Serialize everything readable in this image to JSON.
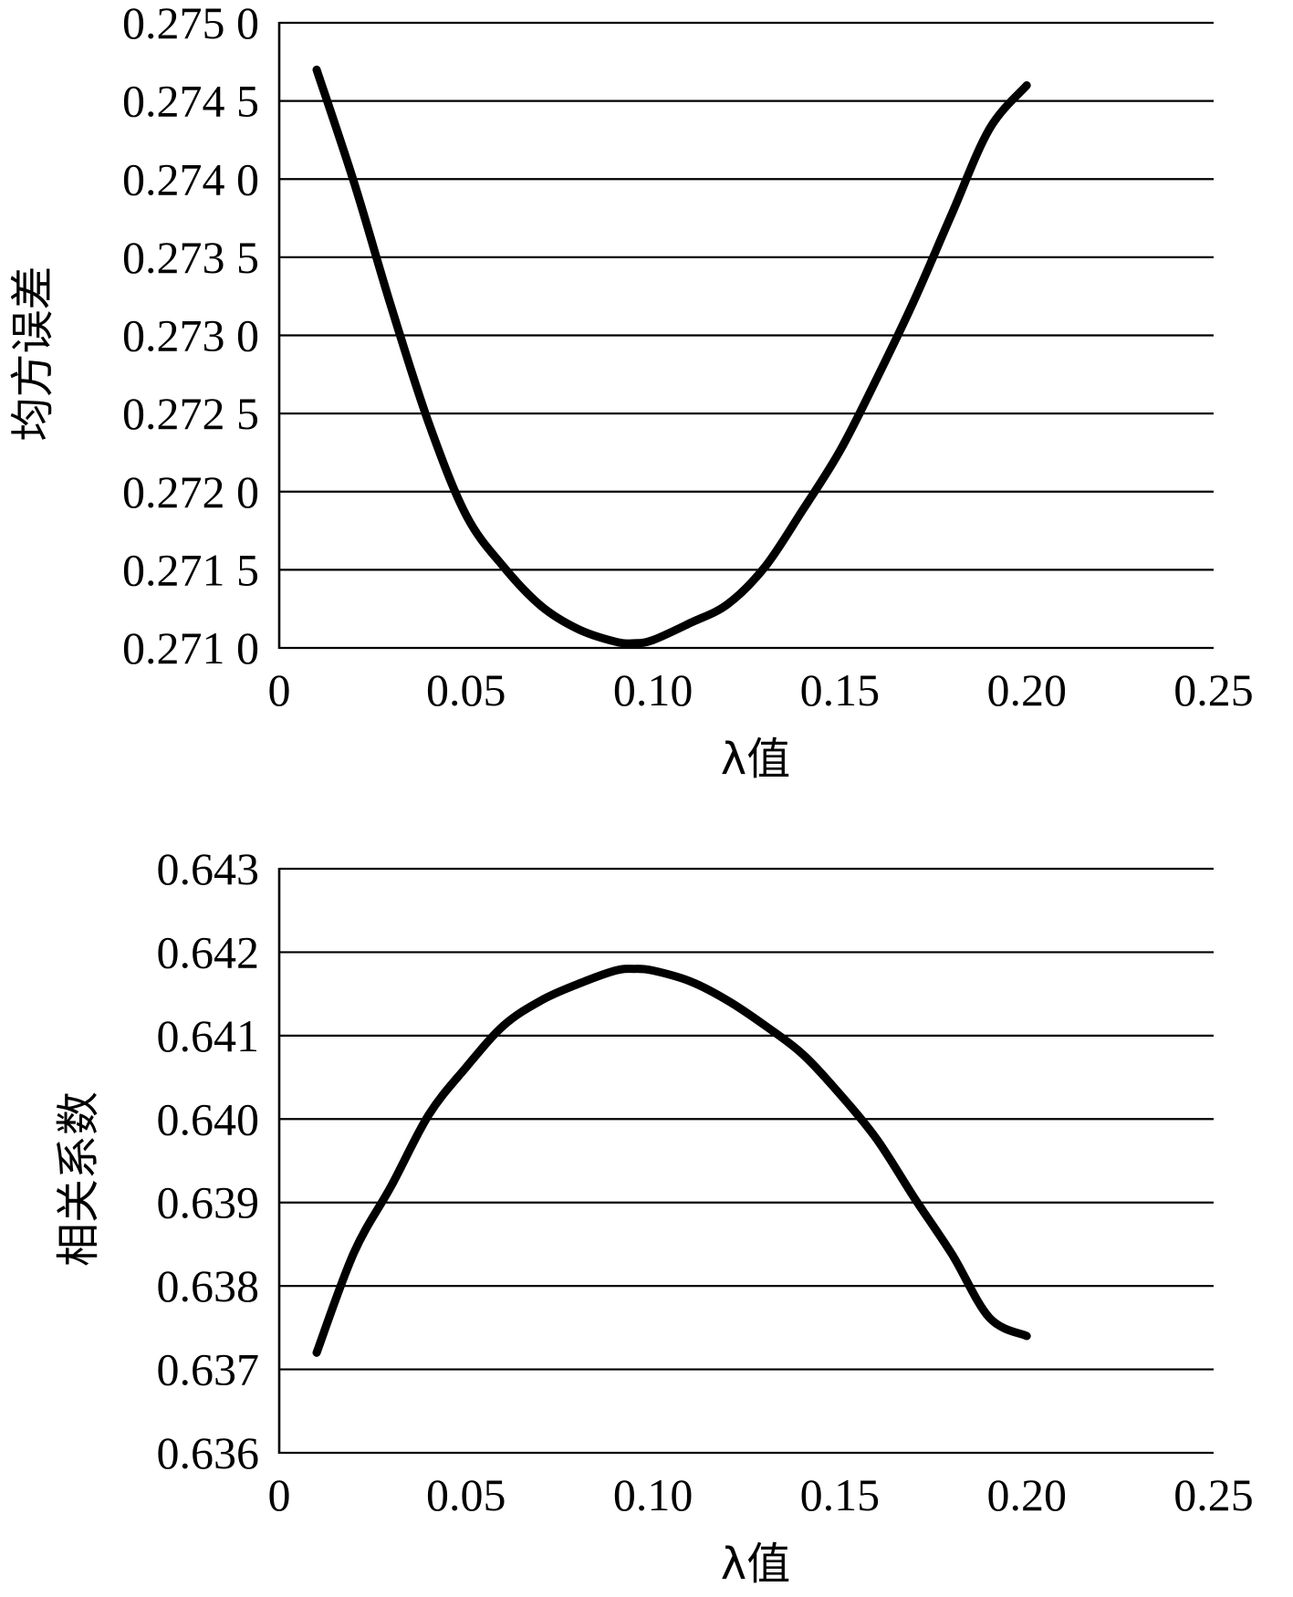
{
  "chart_data": [
    {
      "type": "line",
      "xlabel": "λ值",
      "ylabel": "均方误差",
      "xlim": [
        0,
        0.25
      ],
      "ylim": [
        0.271,
        0.275
      ],
      "x_ticks": [
        0,
        0.05,
        0.1,
        0.15,
        0.2,
        0.25
      ],
      "x_tick_labels": [
        "0",
        "0.05",
        "0.10",
        "0.15",
        "0.20",
        "0.25"
      ],
      "y_ticks": [
        0.271,
        0.2715,
        0.272,
        0.2725,
        0.273,
        0.2735,
        0.274,
        0.2745,
        0.275
      ],
      "y_tick_labels": [
        "0.271 0",
        "0.271 5",
        "0.272 0",
        "0.272 5",
        "0.273 0",
        "0.273 5",
        "0.274 0",
        "0.274 5",
        "0.275 0"
      ],
      "grid": true,
      "series": [
        {
          "x": [
            0.01,
            0.02,
            0.03,
            0.04,
            0.05,
            0.06,
            0.07,
            0.08,
            0.09,
            0.095,
            0.1,
            0.11,
            0.12,
            0.13,
            0.14,
            0.15,
            0.16,
            0.17,
            0.18,
            0.19,
            0.2
          ],
          "y": [
            0.2747,
            0.27398,
            0.27318,
            0.27244,
            0.27185,
            0.27152,
            0.27127,
            0.27112,
            0.27104,
            0.27103,
            0.27105,
            0.27116,
            0.27128,
            0.27152,
            0.27188,
            0.27226,
            0.27273,
            0.27323,
            0.27378,
            0.27432,
            0.2746
          ]
        }
      ]
    },
    {
      "type": "line",
      "xlabel": "λ值",
      "ylabel": "相关系数",
      "xlim": [
        0,
        0.25
      ],
      "ylim": [
        0.636,
        0.643
      ],
      "x_ticks": [
        0,
        0.05,
        0.1,
        0.15,
        0.2,
        0.25
      ],
      "x_tick_labels": [
        "0",
        "0.05",
        "0.10",
        "0.15",
        "0.20",
        "0.25"
      ],
      "y_ticks": [
        0.636,
        0.637,
        0.638,
        0.639,
        0.64,
        0.641,
        0.642,
        0.643
      ],
      "y_tick_labels": [
        "0.636",
        "0.637",
        "0.638",
        "0.639",
        "0.640",
        "0.641",
        "0.642",
        "0.643"
      ],
      "grid": true,
      "series": [
        {
          "x": [
            0.01,
            0.02,
            0.03,
            0.04,
            0.05,
            0.06,
            0.07,
            0.08,
            0.09,
            0.095,
            0.1,
            0.11,
            0.12,
            0.13,
            0.14,
            0.15,
            0.16,
            0.17,
            0.18,
            0.19,
            0.2
          ],
          "y": [
            0.6372,
            0.6384,
            0.6392,
            0.64005,
            0.64062,
            0.64112,
            0.64142,
            0.64162,
            0.64178,
            0.6418,
            0.64178,
            0.64165,
            0.64142,
            0.64112,
            0.64078,
            0.6403,
            0.63975,
            0.63905,
            0.63838,
            0.63762,
            0.6374
          ]
        }
      ]
    }
  ]
}
